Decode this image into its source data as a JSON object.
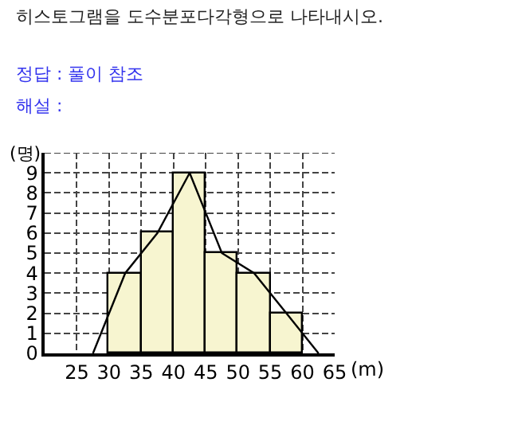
{
  "chart_data": {
    "type": "histogram",
    "title": "히스토그램을 도수분포다각형으로 나타내시오.",
    "annotations": [
      "정답 : 풀이 참조",
      "해설 :"
    ],
    "xlabel": "(m)",
    "ylabel": "(명)",
    "bins": [
      30,
      35,
      40,
      45,
      50,
      55,
      60
    ],
    "values": [
      4,
      6,
      9,
      5,
      4,
      2
    ],
    "color": "#f7f5d0",
    "series": [
      {
        "type": "line",
        "x": [
          27.5,
          32.5,
          37.5,
          42.5,
          47.5,
          52.5,
          57.5,
          62.5
        ],
        "values": [
          0,
          4,
          6,
          9,
          5,
          4,
          2,
          0
        ],
        "color": "#000000"
      }
    ],
    "xlim": [
      20,
      65
    ],
    "xticks": [
      25,
      30,
      35,
      40,
      45,
      50,
      55,
      60,
      65
    ],
    "ylim": [
      0,
      10
    ],
    "yticks": [
      0,
      1,
      2,
      3,
      4,
      5,
      6,
      7,
      8,
      9,
      {
        "value": 10,
        "label": null
      }
    ],
    "grid": true,
    "line_style": "solid",
    "marker": "none"
  }
}
